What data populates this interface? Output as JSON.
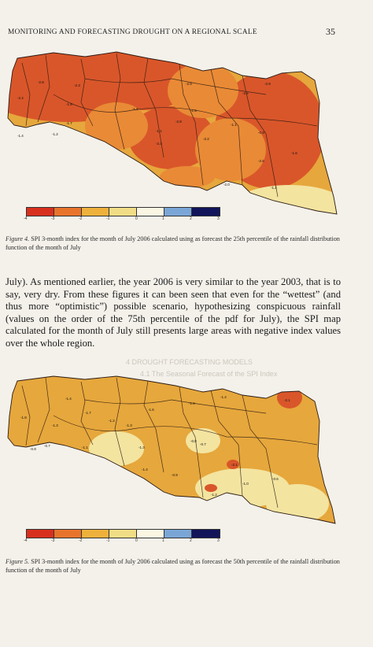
{
  "header": {
    "running_title": "MONITORING AND FORECASTING DROUGHT ON A REGIONAL SCALE",
    "page_number": "35"
  },
  "figure4": {
    "caption_label": "Figure 4.",
    "caption_text": " SPI 3-month index for the month of July 2006 calculated using as forecast the 25th percentile of the rainfall distribution function of the month of July",
    "legend_ticks": [
      "-4",
      "-3",
      "-2",
      "-1",
      "0",
      "1",
      "2",
      "3"
    ],
    "legend_colors": [
      "#d8301e",
      "#e8742c",
      "#eeb13c",
      "#f1dd86",
      "#fbf6e3",
      "#7aa6d7",
      "#12155a"
    ],
    "labels": [
      "-2.4",
      "-2.8",
      "-1.8",
      "-2.3",
      "-1.7",
      "-1.4",
      "-1.2",
      "-1.6",
      "-1.1",
      "-2.3",
      "-2.9",
      "-1.5",
      "-2.8",
      "-2.9",
      "-2.4",
      "-2.2",
      "-1.1",
      "-0.9",
      "-1.6",
      "-2.6",
      "-1.2",
      "-2.0"
    ]
  },
  "paragraph": "July). As mentioned earlier, the year 2006 is very similar to the year 2003, that is to say, very dry. From these figures it can been seen that even for the “wettest” (and thus more “optimistic”) possible scenario, hypothesizing conspicuous rainfall (values on the order of the 75th percentile of the pdf for July), the SPI map calculated for the month of July still presents large areas with negative index values over the whole region.",
  "show_through": {
    "section": "4 DROUGHT FORECASTING MODELS",
    "subsection": "4.1 The Seasonal Forecast of the SPI Index"
  },
  "figure5": {
    "caption_label": "Figure 5.",
    "caption_text": " SPI 3-month index for the month of July 2006 calculated using as forecast the 50th percentile of the rainfall distribution function of the month of July",
    "legend_ticks": [
      "-4",
      "-3",
      "-2",
      "-1",
      "0",
      "1",
      "2",
      "3"
    ],
    "legend_colors": [
      "#d8301e",
      "#e8742c",
      "#eeb13c",
      "#f1dd86",
      "#fbf6e3",
      "#7aa6d7",
      "#12155a"
    ],
    "labels": [
      "-1.4",
      "-1.8",
      "-1.3",
      "-1.7",
      "-1.2",
      "-1.3",
      "-1.6",
      "-1.5",
      "-1.4",
      "-2.1",
      "-0.9",
      "-0.7",
      "-1.1",
      "-1.3",
      "-0.8",
      "-1.4",
      "-0.9",
      "-0.7",
      "-1.0",
      "-2.1",
      "-0.6",
      "-1.2"
    ]
  },
  "colors": {
    "paper": "#f4f1ea",
    "dark_red": "#d2532a",
    "orange": "#e98a36",
    "amber": "#e6a73c",
    "light_yellow": "#f3e4a0"
  }
}
